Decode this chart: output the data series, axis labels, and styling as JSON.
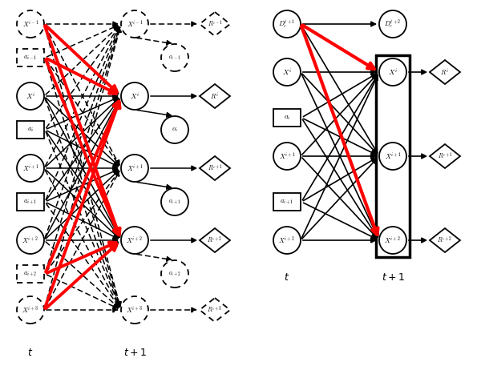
{
  "fig_width": 6.0,
  "fig_height": 4.62,
  "bg_color": "#ffffff"
}
